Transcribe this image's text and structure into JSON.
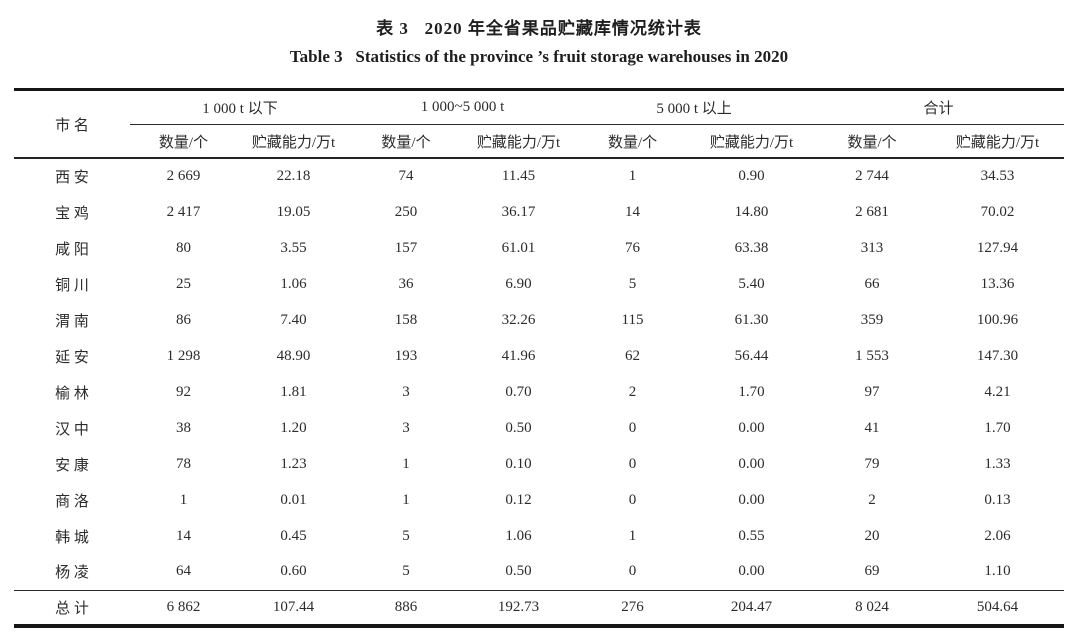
{
  "page": {
    "title_cn": "表 3   2020 年全省果品贮藏库情况统计表",
    "title_en": "Table 3   Statistics of the province ’s fruit storage warehouses in 2020"
  },
  "table": {
    "corner_header": "市 名",
    "groups": [
      {
        "label": "1 000 t 以下"
      },
      {
        "label": "1 000~5 000 t"
      },
      {
        "label": "5 000 t 以上"
      },
      {
        "label": "合计"
      }
    ],
    "sub_headers": [
      "数量/个",
      "贮藏能力/万t",
      "数量/个",
      "贮藏能力/万t",
      "数量/个",
      "贮藏能力/万t",
      "数量/个",
      "贮藏能力/万t"
    ],
    "rows": [
      {
        "city": "西 安",
        "values": [
          "2 669",
          "22.18",
          "74",
          "11.45",
          "1",
          "0.90",
          "2 744",
          "34.53"
        ]
      },
      {
        "city": "宝 鸡",
        "values": [
          "2 417",
          "19.05",
          "250",
          "36.17",
          "14",
          "14.80",
          "2 681",
          "70.02"
        ]
      },
      {
        "city": "咸 阳",
        "values": [
          "80",
          "3.55",
          "157",
          "61.01",
          "76",
          "63.38",
          "313",
          "127.94"
        ]
      },
      {
        "city": "铜 川",
        "values": [
          "25",
          "1.06",
          "36",
          "6.90",
          "5",
          "5.40",
          "66",
          "13.36"
        ]
      },
      {
        "city": "渭 南",
        "values": [
          "86",
          "7.40",
          "158",
          "32.26",
          "115",
          "61.30",
          "359",
          "100.96"
        ]
      },
      {
        "city": "延 安",
        "values": [
          "1 298",
          "48.90",
          "193",
          "41.96",
          "62",
          "56.44",
          "1 553",
          "147.30"
        ]
      },
      {
        "city": "榆 林",
        "values": [
          "92",
          "1.81",
          "3",
          "0.70",
          "2",
          "1.70",
          "97",
          "4.21"
        ]
      },
      {
        "city": "汉 中",
        "values": [
          "38",
          "1.20",
          "3",
          "0.50",
          "0",
          "0.00",
          "41",
          "1.70"
        ]
      },
      {
        "city": "安 康",
        "values": [
          "78",
          "1.23",
          "1",
          "0.10",
          "0",
          "0.00",
          "79",
          "1.33"
        ]
      },
      {
        "city": "商 洛",
        "values": [
          "1",
          "0.01",
          "1",
          "0.12",
          "0",
          "0.00",
          "2",
          "0.13"
        ]
      },
      {
        "city": "韩 城",
        "values": [
          "14",
          "0.45",
          "5",
          "1.06",
          "1",
          "0.55",
          "20",
          "2.06"
        ]
      },
      {
        "city": "杨 凌",
        "values": [
          "64",
          "0.60",
          "5",
          "0.50",
          "0",
          "0.00",
          "69",
          "1.10"
        ]
      }
    ],
    "total_row": {
      "city": "总 计",
      "values": [
        "6 862",
        "107.44",
        "886",
        "192.73",
        "276",
        "204.47",
        "8 024",
        "504.64"
      ]
    }
  }
}
